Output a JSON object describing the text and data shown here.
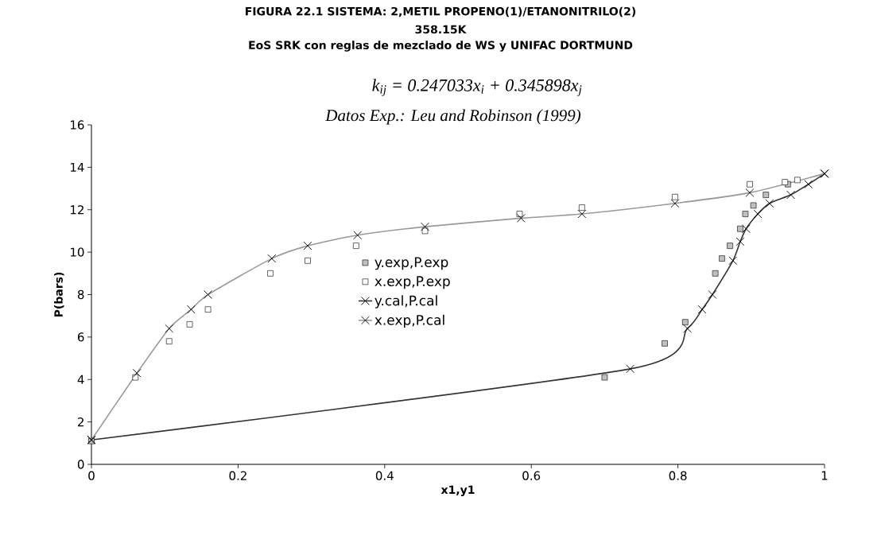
{
  "chart_data": {
    "type": "line",
    "title": "FIGURA 22.1 SISTEMA: 2,METIL PROPENO(1)/ETANONITRILO(2)",
    "subtitle": "358.15K",
    "annotations": [
      "EoS SRK con reglas de mezclado de WS y UNIFAC DORTMUND",
      "k$_{ij}$ = 0.247033x$_{i}$ + 0.345898x$_{j}$",
      "Datos Exp.: Leu and Robinson (1999)"
    ],
    "xlabel": "x1,y1",
    "ylabel": "P(bars)",
    "xlim": [
      0,
      1
    ],
    "xticks": [
      0,
      0.2,
      0.4,
      0.6,
      0.8,
      1
    ],
    "ylim": [
      0,
      16
    ],
    "yticks": [
      0,
      2,
      4,
      6,
      8,
      10,
      12,
      14,
      16
    ],
    "legend": "center",
    "series": [
      {
        "name": "y.exp,P.exp",
        "type": "scatter",
        "marker": "square",
        "color": "#c0c0c0",
        "x": [
          0,
          0.7,
          0.782,
          0.81,
          0.851,
          0.86,
          0.871,
          0.885,
          0.892,
          0.903,
          0.92,
          0.95
        ],
        "values": [
          1.1,
          4.1,
          5.7,
          6.7,
          9.0,
          9.7,
          10.3,
          11.1,
          11.8,
          12.2,
          12.7,
          13.2
        ]
      },
      {
        "name": "x.exp,P.exp",
        "type": "scatter",
        "marker": "square",
        "color": "#ffffff",
        "x": [
          0.06,
          0.106,
          0.134,
          0.159,
          0.244,
          0.295,
          0.361,
          0.455,
          0.584,
          0.669,
          0.796,
          0.898,
          0.946,
          0.963
        ],
        "values": [
          4.1,
          5.8,
          6.6,
          7.3,
          9.0,
          9.6,
          10.3,
          11.0,
          11.8,
          12.1,
          12.6,
          13.2,
          13.3,
          13.4
        ]
      },
      {
        "name": "y.cal,P.cal",
        "marker": "cross",
        "color": "#333333",
        "x": [
          0,
          0.735,
          0.813,
          0.833,
          0.847,
          0.875,
          0.885,
          0.893,
          0.909,
          0.925,
          0.954,
          0.978,
          1.0
        ],
        "values": [
          1.15,
          4.5,
          6.4,
          7.3,
          8.0,
          9.6,
          10.5,
          11.1,
          11.8,
          12.3,
          12.7,
          13.2,
          13.7
        ]
      },
      {
        "name": "x.exp,P.cal",
        "marker": "cross",
        "color": "#999999",
        "x": [
          0,
          0.062,
          0.106,
          0.136,
          0.159,
          0.246,
          0.295,
          0.363,
          0.455,
          0.586,
          0.669,
          0.796,
          0.898,
          1.0
        ],
        "values": [
          1.15,
          4.3,
          6.4,
          7.3,
          8.0,
          9.7,
          10.3,
          10.8,
          11.2,
          11.6,
          11.8,
          12.3,
          12.8,
          13.7
        ]
      }
    ]
  }
}
